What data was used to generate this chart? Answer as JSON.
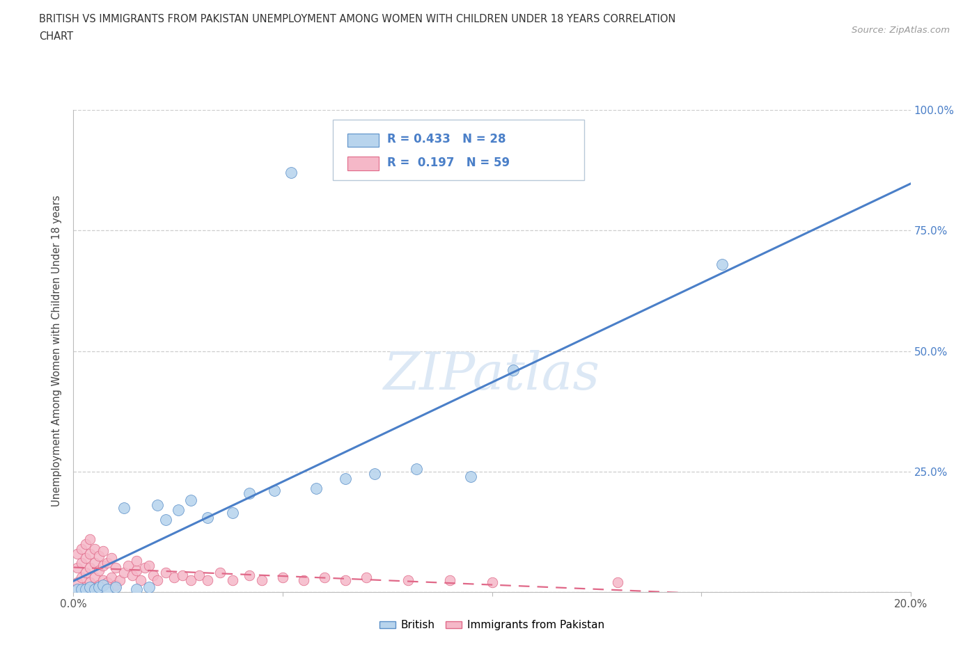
{
  "title_line1": "BRITISH VS IMMIGRANTS FROM PAKISTAN UNEMPLOYMENT AMONG WOMEN WITH CHILDREN UNDER 18 YEARS CORRELATION",
  "title_line2": "CHART",
  "source": "Source: ZipAtlas.com",
  "ylabel": "Unemployment Among Women with Children Under 18 years",
  "x_min": 0.0,
  "x_max": 0.2,
  "y_min": 0.0,
  "y_max": 1.0,
  "british_R": 0.433,
  "british_N": 28,
  "pakistan_R": 0.197,
  "pakistan_N": 59,
  "british_fill_color": "#b8d4ed",
  "british_edge_color": "#5a8fc8",
  "pakistan_fill_color": "#f5b8c8",
  "pakistan_edge_color": "#e06888",
  "british_line_color": "#4a7fc8",
  "pakistan_line_color": "#e06888",
  "watermark_color": "#dce8f5",
  "background_color": "#ffffff",
  "grid_color": "#c8c8c8",
  "title_color": "#333333",
  "source_color": "#999999",
  "right_tick_color": "#4a7fc8",
  "british_x": [
    0.001,
    0.002,
    0.003,
    0.004,
    0.005,
    0.006,
    0.007,
    0.008,
    0.01,
    0.012,
    0.015,
    0.018,
    0.02,
    0.022,
    0.025,
    0.028,
    0.032,
    0.038,
    0.042,
    0.048,
    0.052,
    0.058,
    0.065,
    0.072,
    0.082,
    0.095,
    0.105,
    0.155
  ],
  "british_y": [
    0.005,
    0.005,
    0.005,
    0.01,
    0.005,
    0.01,
    0.015,
    0.005,
    0.01,
    0.175,
    0.005,
    0.01,
    0.18,
    0.15,
    0.17,
    0.19,
    0.155,
    0.165,
    0.205,
    0.21,
    0.87,
    0.215,
    0.235,
    0.245,
    0.255,
    0.24,
    0.46,
    0.68
  ],
  "pakistan_x": [
    0.001,
    0.001,
    0.001,
    0.002,
    0.002,
    0.002,
    0.003,
    0.003,
    0.003,
    0.003,
    0.004,
    0.004,
    0.004,
    0.004,
    0.005,
    0.005,
    0.005,
    0.006,
    0.006,
    0.006,
    0.007,
    0.007,
    0.007,
    0.008,
    0.008,
    0.009,
    0.009,
    0.01,
    0.01,
    0.011,
    0.012,
    0.013,
    0.014,
    0.015,
    0.015,
    0.016,
    0.017,
    0.018,
    0.019,
    0.02,
    0.022,
    0.024,
    0.026,
    0.028,
    0.03,
    0.032,
    0.035,
    0.038,
    0.042,
    0.045,
    0.05,
    0.055,
    0.06,
    0.065,
    0.07,
    0.08,
    0.09,
    0.1,
    0.13
  ],
  "pakistan_y": [
    0.02,
    0.05,
    0.08,
    0.03,
    0.06,
    0.09,
    0.01,
    0.04,
    0.07,
    0.1,
    0.02,
    0.05,
    0.08,
    0.11,
    0.03,
    0.06,
    0.09,
    0.015,
    0.045,
    0.075,
    0.025,
    0.055,
    0.085,
    0.02,
    0.06,
    0.03,
    0.07,
    0.015,
    0.05,
    0.025,
    0.04,
    0.055,
    0.035,
    0.045,
    0.065,
    0.025,
    0.05,
    0.055,
    0.035,
    0.025,
    0.04,
    0.03,
    0.035,
    0.025,
    0.035,
    0.025,
    0.04,
    0.025,
    0.035,
    0.025,
    0.03,
    0.025,
    0.03,
    0.025,
    0.03,
    0.025,
    0.025,
    0.02,
    0.02
  ]
}
